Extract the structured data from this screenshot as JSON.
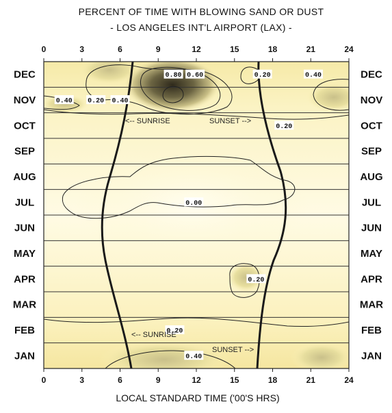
{
  "chart_data": {
    "type": "heatmap",
    "title": "PERCENT OF TIME WITH BLOWING SAND OR DUST",
    "subtitle": "- LOS ANGELES INT'L AIRPORT (LAX) -",
    "xlabel": "LOCAL STANDARD TIME ('00'S HRS)",
    "x_ticks": [
      "0",
      "3",
      "6",
      "9",
      "12",
      "15",
      "18",
      "21",
      "24"
    ],
    "xlim": [
      0,
      24
    ],
    "months": [
      "DEC",
      "NOV",
      "OCT",
      "SEP",
      "AUG",
      "JUL",
      "JUN",
      "MAY",
      "APR",
      "MAR",
      "FEB",
      "JAN"
    ],
    "contour_labels": [
      {
        "text": "0.80",
        "hour": 10.2,
        "month": "DEC"
      },
      {
        "text": "0.60",
        "hour": 11.9,
        "month": "DEC"
      },
      {
        "text": "0.40",
        "hour": 6.0,
        "month": "NOV"
      },
      {
        "text": "0.40",
        "hour": 21.2,
        "month": "DEC"
      },
      {
        "text": "0.40",
        "hour": 1.6,
        "month": "NOV"
      },
      {
        "text": "0.20",
        "hour": 4.1,
        "month": "NOV"
      },
      {
        "text": "0.20",
        "hour": 17.2,
        "month": "DEC"
      },
      {
        "text": "0.20",
        "hour": 18.9,
        "month": "OCT"
      },
      {
        "text": "0.00",
        "hour": 11.8,
        "month": "JUL"
      },
      {
        "text": "0.20",
        "hour": 16.7,
        "month": "APR"
      },
      {
        "text": "0.20",
        "hour": 10.3,
        "month": "FEB"
      },
      {
        "text": "0.40",
        "hour": 11.8,
        "month": "JAN"
      }
    ],
    "annotations": {
      "sunrise_upper": "<-- SUNRISE",
      "sunset_upper": "SUNSET -->",
      "sunrise_lower": "<-- SUNRISE",
      "sunset_lower": "SUNSET -->"
    },
    "colors": {
      "background": "#fdf6c0",
      "low": "#fffbe0",
      "high": "#3b3524",
      "lines": "#1a1a1a"
    },
    "grid": true
  }
}
